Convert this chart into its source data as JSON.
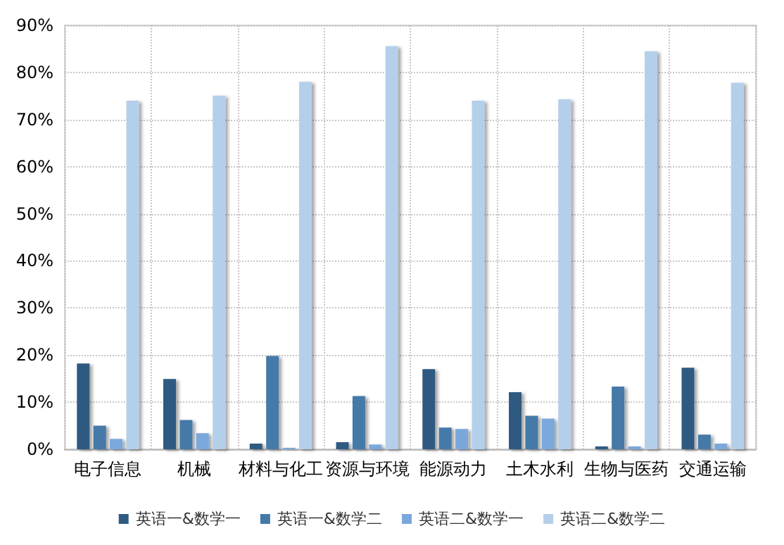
{
  "chart_data": {
    "type": "bar",
    "categories": [
      "电子信息",
      "机械",
      "材料与化工",
      "资源与环境",
      "能源动力",
      "土木水利",
      "生物与医药",
      "交通运输"
    ],
    "series": [
      {
        "name": "英语一&数学一",
        "color": "#2f5a82",
        "values": [
          18.2,
          14.9,
          1.2,
          1.5,
          17.0,
          12.1,
          0.6,
          17.3
        ]
      },
      {
        "name": "英语一&数学二",
        "color": "#4479a8",
        "values": [
          5.0,
          6.2,
          19.8,
          11.3,
          4.6,
          7.1,
          13.3,
          3.1
        ]
      },
      {
        "name": "英语二&数学一",
        "color": "#7aa8dc",
        "values": [
          2.2,
          3.4,
          0.3,
          1.0,
          4.3,
          6.5,
          0.6,
          1.2
        ]
      },
      {
        "name": "英语二&数学二",
        "color": "#b4cfea",
        "values": [
          74.0,
          75.1,
          78.0,
          85.6,
          74.0,
          74.3,
          84.5,
          77.8
        ]
      }
    ],
    "ylim": [
      0,
      90
    ],
    "yticks": [
      {
        "value": 0,
        "label": "0%"
      },
      {
        "value": 10,
        "label": "10%"
      },
      {
        "value": 20,
        "label": "20%"
      },
      {
        "value": 30,
        "label": "30%"
      },
      {
        "value": 40,
        "label": "40%"
      },
      {
        "value": 50,
        "label": "50%"
      },
      {
        "value": 60,
        "label": "60%"
      },
      {
        "value": 70,
        "label": "70%"
      },
      {
        "value": 80,
        "label": "80%"
      },
      {
        "value": 90,
        "label": "90%"
      }
    ],
    "grid": true,
    "legend": "bottom"
  }
}
